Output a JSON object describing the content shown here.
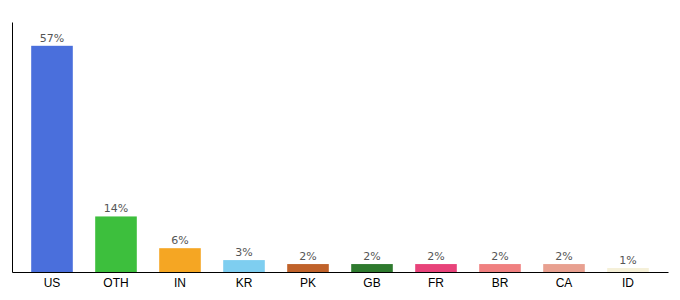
{
  "chart_data": {
    "type": "bar",
    "categories": [
      "US",
      "OTH",
      "IN",
      "KR",
      "PK",
      "GB",
      "FR",
      "BR",
      "CA",
      "ID"
    ],
    "values": [
      57,
      14,
      6,
      3,
      2,
      2,
      2,
      2,
      2,
      1
    ],
    "colors": [
      "#4a6fdc",
      "#3dbf3d",
      "#f5a623",
      "#7ecef0",
      "#c0622a",
      "#2e7a2e",
      "#e8437a",
      "#f08080",
      "#e8a090",
      "#f5f0d8"
    ],
    "ylim": [
      0,
      63
    ],
    "data_labels": true,
    "value_labels": [
      "57%",
      "14%",
      "6%",
      "3%",
      "2%",
      "2%",
      "2%",
      "2%",
      "2%",
      "1%"
    ],
    "tick_labels": "x",
    "grid": false
  }
}
